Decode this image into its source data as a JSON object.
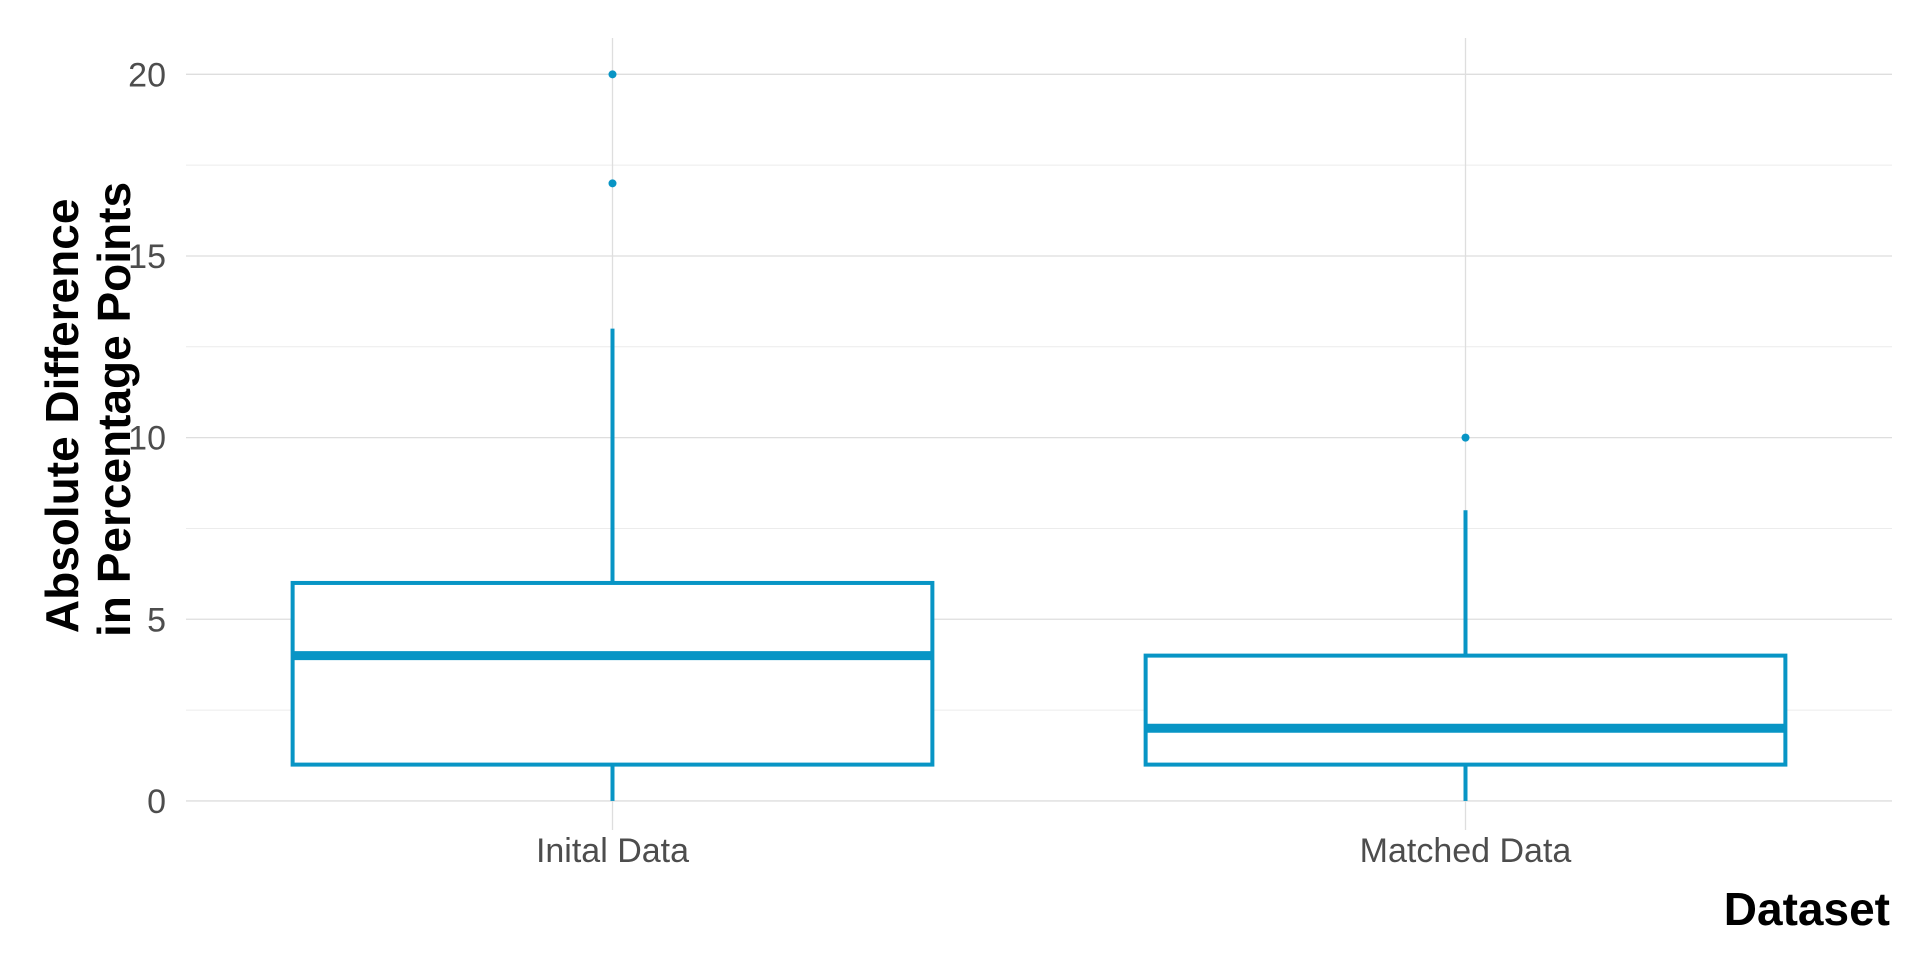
{
  "chart_data": {
    "type": "boxplot",
    "title": "",
    "xlabel": "Dataset",
    "ylabel_lines": [
      "Absolute Difference",
      "in Percentage Points"
    ],
    "categories": [
      "Inital Data",
      "Matched Data"
    ],
    "boxes": [
      {
        "category": "Inital Data",
        "whisker_low": 0,
        "q1": 1,
        "median": 4,
        "q3": 6,
        "whisker_high": 13,
        "outliers": [
          17,
          20
        ]
      },
      {
        "category": "Matched Data",
        "whisker_low": 0,
        "q1": 1,
        "median": 2,
        "q3": 4,
        "whisker_high": 8,
        "outliers": [
          10
        ]
      }
    ],
    "ylim": [
      -0.8,
      21
    ],
    "yticks": [
      0,
      5,
      10,
      15,
      20
    ],
    "y_minor_ticks": [
      2.5,
      7.5,
      12.5,
      17.5
    ],
    "grid": true,
    "legend": "none",
    "color": "#0895c5"
  }
}
